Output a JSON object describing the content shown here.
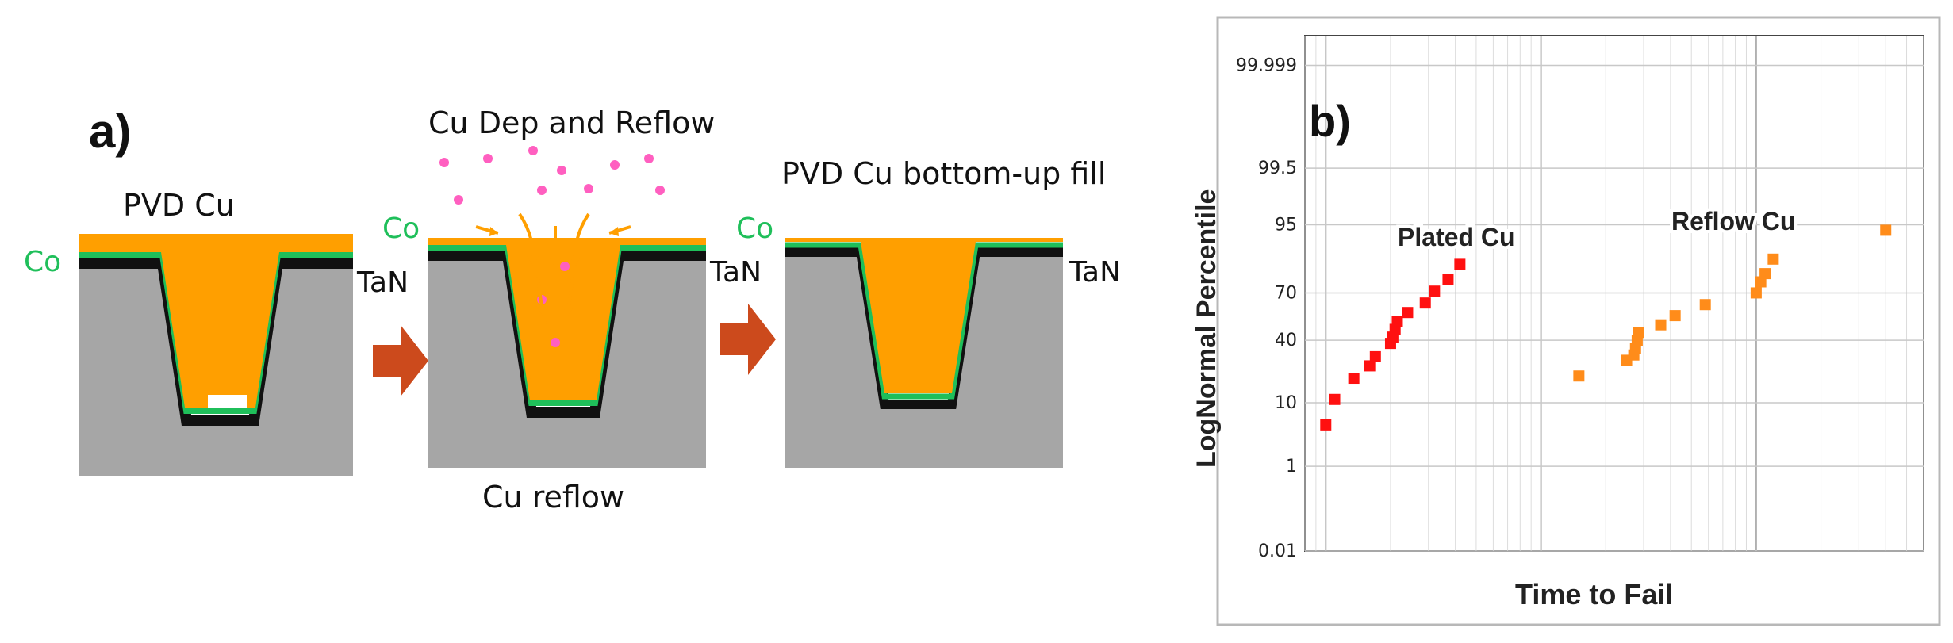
{
  "panel_a": {
    "label": "a)",
    "stage1": {
      "title": "PVD Cu",
      "co": "Co",
      "tan": "TaN"
    },
    "stage2": {
      "title": "Cu Dep and Reflow",
      "co": "Co",
      "tan": "TaN",
      "caption": "Cu reflow"
    },
    "stage3": {
      "title": "PVD Cu bottom-up fill",
      "co": "Co",
      "tan": "TaN"
    },
    "colors": {
      "substrate": "#a6a6a6",
      "copper": "#ff9f00",
      "cobalt": "#1fbf5a",
      "tan_liner": "#111111",
      "arrow": "#cc4a1c",
      "particle": "#ff5fc0"
    }
  },
  "panel_b": {
    "label": "b)",
    "chart_data": {
      "type": "scatter",
      "xlabel": "Time to Fail",
      "ylabel": "LogNormal Percentile",
      "x_scale": "log",
      "y_scale": "lognormal-probability",
      "y_ticks": [
        "99.999",
        "99.5",
        "95",
        "70",
        "40",
        "10",
        "1",
        "0.01"
      ],
      "grid": true,
      "annotations": [
        "Plated Cu",
        "Reflow Cu"
      ],
      "series": [
        {
          "name": "Plated Cu",
          "color": "#ff1010",
          "points": [
            [
              1.0,
              5
            ],
            [
              1.1,
              11
            ],
            [
              1.35,
              19
            ],
            [
              1.6,
              25
            ],
            [
              1.7,
              30
            ],
            [
              2.0,
              38
            ],
            [
              2.05,
              42
            ],
            [
              2.1,
              47
            ],
            [
              2.15,
              52
            ],
            [
              2.4,
              58
            ],
            [
              2.9,
              64
            ],
            [
              3.2,
              71
            ],
            [
              3.7,
              77
            ],
            [
              4.2,
              84
            ]
          ]
        },
        {
          "name": "Reflow Cu",
          "color": "#ff8c1a",
          "points": [
            [
              15,
              20
            ],
            [
              25,
              28
            ],
            [
              27,
              31
            ],
            [
              27.5,
              35
            ],
            [
              28,
              40
            ],
            [
              28.5,
              45
            ],
            [
              36,
              50
            ],
            [
              42,
              56
            ],
            [
              58,
              63
            ],
            [
              100,
              70
            ],
            [
              105,
              76
            ],
            [
              110,
              80
            ],
            [
              120,
              86
            ],
            [
              400,
              94
            ]
          ]
        }
      ]
    }
  }
}
